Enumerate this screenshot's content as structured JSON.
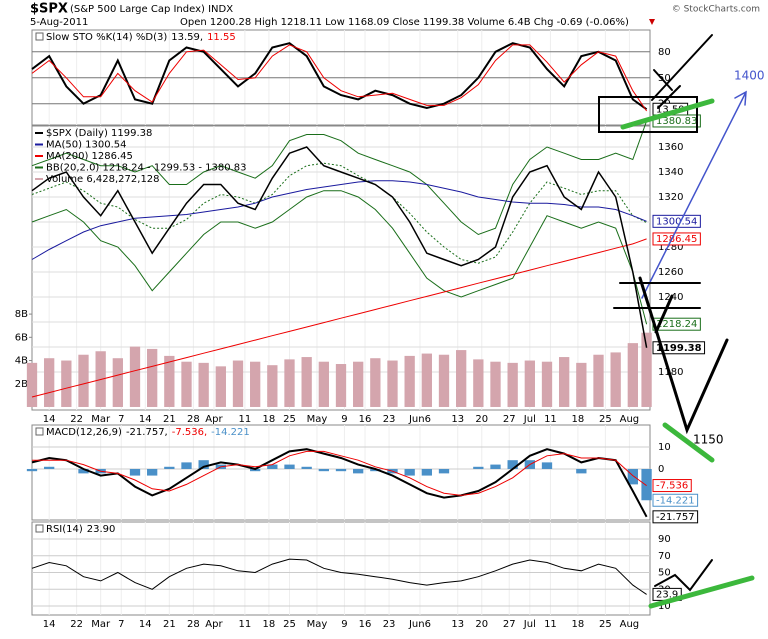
{
  "header": {
    "symbol": "$SPX",
    "name": "(S&P 500 Large Cap Index) INDX",
    "date": "5-Aug-2011",
    "quote": "Open 1200.28 High 1218.11 Low 1168.09 Close 1199.38 Volume 6.4B Chg -0.69 (-0.06%)",
    "credit": "© StockCharts.com"
  },
  "xaxis": {
    "xlim": [
      0,
      180
    ],
    "x": [
      0,
      5,
      10,
      15,
      20,
      25,
      30,
      35,
      40,
      45,
      50,
      55,
      60,
      65,
      70,
      75,
      80,
      85,
      90,
      95,
      100,
      105,
      110,
      115,
      120,
      125,
      130,
      135,
      140,
      145,
      150,
      155,
      160,
      165,
      170,
      175,
      179
    ],
    "xticks": [
      {
        "value": 5,
        "label": "14"
      },
      {
        "value": 13,
        "label": "22"
      },
      {
        "value": 20,
        "label": "Mar"
      },
      {
        "value": 26,
        "label": "7"
      },
      {
        "value": 33,
        "label": "14"
      },
      {
        "value": 40,
        "label": "21"
      },
      {
        "value": 47,
        "label": "28"
      },
      {
        "value": 53,
        "label": "Apr"
      },
      {
        "value": 62,
        "label": "11"
      },
      {
        "value": 69,
        "label": "18"
      },
      {
        "value": 75,
        "label": "25"
      },
      {
        "value": 83,
        "label": "May"
      },
      {
        "value": 91,
        "label": "9"
      },
      {
        "value": 97,
        "label": "16"
      },
      {
        "value": 104,
        "label": "23"
      },
      {
        "value": 113,
        "label": "Jun6"
      },
      {
        "value": 124,
        "label": "13"
      },
      {
        "value": 131,
        "label": "20"
      },
      {
        "value": 139,
        "label": "27"
      },
      {
        "value": 145,
        "label": "Jul"
      },
      {
        "value": 151,
        "label": "11"
      },
      {
        "value": 159,
        "label": "18"
      },
      {
        "value": 167,
        "label": "25"
      },
      {
        "value": 174,
        "label": "Aug"
      }
    ]
  },
  "chart_data": [
    {
      "type": "line",
      "legend_title": "Slow STO %K(14) %D(3)",
      "legend_inline": true,
      "ylim": [
        -4.6,
        105.2
      ],
      "yticks": [
        20,
        50,
        80
      ],
      "grid_color": "#777",
      "x_labels": false,
      "series": [
        {
          "name": "13.59,",
          "color": "#000",
          "width": 2,
          "values": [
            60,
            75,
            40,
            20,
            30,
            70,
            25,
            20,
            70,
            85,
            80,
            60,
            40,
            55,
            85,
            90,
            75,
            40,
            30,
            25,
            35,
            30,
            20,
            15,
            20,
            30,
            50,
            80,
            90,
            85,
            60,
            40,
            75,
            80,
            70,
            25,
            13.59
          ]
        },
        {
          "name": "11.55",
          "color": "#e00",
          "width": 1,
          "values": [
            55,
            70,
            50,
            28,
            28,
            55,
            35,
            22,
            55,
            80,
            82,
            65,
            48,
            50,
            75,
            88,
            80,
            50,
            35,
            28,
            30,
            32,
            25,
            18,
            18,
            27,
            42,
            70,
            88,
            88,
            68,
            45,
            65,
            80,
            75,
            35,
            11.55
          ]
        }
      ],
      "end_labels": [
        {
          "value": 13.59,
          "color": "#000"
        }
      ]
    },
    {
      "type": "line",
      "legend_inline": false,
      "ylim": [
        1149.6,
        1376.8
      ],
      "yticks": [
        1180,
        1200,
        1220,
        1240,
        1260,
        1280,
        1300,
        1320,
        1340,
        1360
      ],
      "grid_color": "#ddd",
      "x_labels": true,
      "y2lim": [
        -0.26,
        24.2
      ],
      "y2ticks": [
        {
          "value": 2,
          "label": "2B"
        },
        {
          "value": 4,
          "label": "4B"
        },
        {
          "value": 6,
          "label": "6B"
        },
        {
          "value": 8,
          "label": "8B"
        }
      ],
      "series": [
        {
          "name": "Volume 6,428,272,128",
          "kind": "bar",
          "axis": "y2",
          "color": "#d4a5ad",
          "values": [
            3.8,
            4.2,
            4.0,
            4.5,
            4.8,
            4.2,
            5.2,
            5.0,
            4.4,
            3.9,
            3.8,
            3.5,
            4.0,
            3.9,
            3.6,
            4.1,
            4.3,
            3.9,
            3.7,
            3.9,
            4.2,
            4.0,
            4.4,
            4.6,
            4.5,
            4.9,
            4.1,
            3.9,
            3.8,
            4.0,
            3.9,
            4.3,
            3.8,
            4.5,
            4.7,
            5.5,
            6.4
          ]
        },
        {
          "name": "BB(20,2.0) 1218.24 - 1299.53 - 1380.83",
          "color": "#1a6e1a",
          "width": 1,
          "values": [
            1345,
            1350,
            1355,
            1350,
            1345,
            1345,
            1340,
            1345,
            1330,
            1330,
            1340,
            1345,
            1340,
            1335,
            1345,
            1365,
            1370,
            1370,
            1365,
            1355,
            1350,
            1345,
            1340,
            1330,
            1315,
            1300,
            1290,
            1295,
            1330,
            1350,
            1360,
            1355,
            1350,
            1350,
            1355,
            1350,
            1380.83
          ]
        },
        {
          "color": "#1a6e1a",
          "width": 1,
          "values": [
            1300,
            1305,
            1310,
            1300,
            1285,
            1280,
            1265,
            1245,
            1260,
            1275,
            1290,
            1300,
            1300,
            1295,
            1300,
            1310,
            1320,
            1325,
            1325,
            1320,
            1310,
            1295,
            1275,
            1255,
            1245,
            1240,
            1245,
            1250,
            1255,
            1280,
            1305,
            1300,
            1295,
            1300,
            1295,
            1260,
            1218.24
          ]
        },
        {
          "color": "#1a6e1a",
          "width": 1,
          "dash": true,
          "values": [
            1322,
            1327,
            1332,
            1325,
            1315,
            1312,
            1302,
            1295,
            1295,
            1302,
            1315,
            1322,
            1320,
            1315,
            1322,
            1337,
            1345,
            1347,
            1345,
            1337,
            1330,
            1320,
            1307,
            1292,
            1280,
            1270,
            1267,
            1272,
            1292,
            1315,
            1332,
            1327,
            1322,
            1325,
            1325,
            1305,
            1299.53
          ]
        },
        {
          "name": "MA(200) 1286.45",
          "color": "#e00",
          "width": 1,
          "values": [
            1160,
            1163.5,
            1167,
            1170.5,
            1174,
            1177.5,
            1181,
            1184.5,
            1188,
            1191.5,
            1195,
            1198.5,
            1202,
            1205.5,
            1209,
            1212.5,
            1216,
            1219.5,
            1223,
            1226.5,
            1230,
            1233.5,
            1237,
            1240.5,
            1244,
            1247.5,
            1251,
            1254.5,
            1258,
            1261.5,
            1265,
            1268.5,
            1272,
            1275.5,
            1279,
            1282.5,
            1286.45
          ]
        },
        {
          "name": "MA(50) 1300.54",
          "color": "#1a1a9e",
          "width": 1,
          "values": [
            1270,
            1278,
            1285,
            1292,
            1297,
            1300,
            1303,
            1304,
            1305,
            1306,
            1308,
            1310,
            1312,
            1315,
            1320,
            1323,
            1326,
            1328,
            1330,
            1332,
            1333,
            1333,
            1332,
            1330,
            1327,
            1324,
            1320,
            1318,
            1316,
            1315,
            1315,
            1314,
            1312,
            1312,
            1310,
            1305,
            1300.54
          ]
        },
        {
          "name": "$SPX (Daily) 1199.38",
          "color": "#000",
          "width": 1.5,
          "values": [
            1325,
            1335,
            1340,
            1320,
            1305,
            1325,
            1300,
            1275,
            1295,
            1315,
            1330,
            1330,
            1315,
            1310,
            1335,
            1355,
            1360,
            1345,
            1340,
            1335,
            1330,
            1320,
            1300,
            1275,
            1270,
            1265,
            1270,
            1280,
            1320,
            1340,
            1345,
            1320,
            1310,
            1340,
            1320,
            1260,
            1199.38
          ]
        }
      ],
      "end_labels": [
        {
          "value": 1380.83,
          "color": "#1a6e1a"
        },
        {
          "value": 1300.54,
          "color": "#1a1a9e"
        },
        {
          "value": 1286.45,
          "color": "#e00"
        },
        {
          "value": 1218.24,
          "color": "#1a6e1a"
        },
        {
          "value": 1199.38,
          "color": "#000",
          "bold": true
        }
      ]
    },
    {
      "type": "line",
      "legend_title": "MACD(12,26,9)",
      "legend_inline": true,
      "ylim": [
        -23.2,
        20
      ],
      "yticks": [
        0,
        10
      ],
      "grid_color": "#ccc",
      "x_labels": false,
      "series": [
        {
          "name": "-14.221",
          "kind": "bar",
          "color": "#4a90c8",
          "values": [
            -1,
            1,
            0,
            -2,
            -2,
            0,
            -3,
            -3,
            1,
            3,
            4,
            2,
            0,
            -1,
            2,
            2,
            1,
            -1,
            -1,
            -2,
            -1,
            -2,
            -3,
            -3,
            -2,
            0,
            1,
            2,
            4,
            4,
            3,
            0,
            -2,
            0,
            0,
            -7,
            -14.221
          ]
        },
        {
          "name": "-21.757,",
          "color": "#000",
          "width": 2,
          "values": [
            3,
            5,
            4,
            0,
            -3,
            -2,
            -8,
            -12,
            -9,
            -4,
            1,
            3,
            2,
            0,
            4,
            8,
            9,
            7,
            5,
            2,
            0,
            -3,
            -7,
            -11,
            -13,
            -12,
            -10,
            -6,
            0,
            6,
            9,
            7,
            3,
            5,
            4,
            -10,
            -21.757
          ]
        },
        {
          "name": "-7.536,",
          "color": "#e00",
          "width": 1,
          "values": [
            4,
            4,
            4,
            2,
            -1,
            -2,
            -5,
            -9,
            -10,
            -7,
            -3,
            1,
            2,
            1,
            2,
            6,
            8,
            8,
            6,
            4,
            1,
            -1,
            -4,
            -8,
            -11,
            -12,
            -11,
            -8,
            -4,
            2,
            6,
            7,
            5,
            5,
            4,
            -3,
            -7.536
          ]
        }
      ],
      "legend_order": [
        1,
        2,
        0
      ],
      "end_labels": [
        {
          "value": -7.536,
          "color": "#e00"
        },
        {
          "value": -14.221,
          "color": "#4a90c8"
        },
        {
          "value": -21.757,
          "color": "#000"
        }
      ]
    },
    {
      "type": "line",
      "legend_title": "RSI(14)",
      "legend_inline": true,
      "ylim": [
        -0.7,
        110.3
      ],
      "yticks": [
        10,
        30,
        50,
        70,
        90
      ],
      "grid_color": "#ccc",
      "x_labels": true,
      "series": [
        {
          "name": "23.90",
          "color": "#000",
          "width": 1,
          "values": [
            55,
            62,
            58,
            45,
            40,
            50,
            38,
            30,
            45,
            55,
            60,
            58,
            52,
            50,
            60,
            66,
            65,
            55,
            50,
            48,
            45,
            42,
            38,
            35,
            38,
            40,
            45,
            52,
            60,
            65,
            62,
            55,
            52,
            60,
            55,
            35,
            23.9
          ]
        }
      ],
      "end_labels": [
        {
          "value": 23.9,
          "color": "#000"
        }
      ]
    }
  ],
  "annotations": [
    {
      "text": "1400",
      "color": "#4455cc"
    },
    {
      "text": "1150",
      "color": "#000"
    }
  ]
}
